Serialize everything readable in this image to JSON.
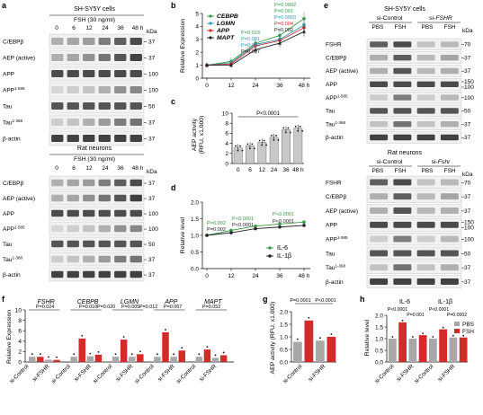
{
  "panels": {
    "a": {
      "label": "a",
      "top": {
        "cell_line": "SH-SY5Y cells",
        "treatment": "FSH (30 ng/ml)",
        "times": [
          "0",
          "6",
          "12",
          "24",
          "36",
          "48 h"
        ],
        "kda_title": "kDa",
        "rows": [
          {
            "name": "C/EBPβ",
            "kda": "37"
          },
          {
            "name": "AEP (active)",
            "kda": "37"
          },
          {
            "name": "APP",
            "kda": "100"
          },
          {
            "name": "APP",
            "sup": "1-585",
            "kda": "100"
          },
          {
            "name": "Tau",
            "kda": "50"
          },
          {
            "name": "Tau",
            "sup": "1-368",
            "kda": "37"
          },
          {
            "name": "β-actin",
            "kda": "37"
          }
        ]
      },
      "bottom": {
        "cell_line": "Rat neurons",
        "treatment": "FSH (30 ng/ml)",
        "times": [
          "0",
          "6",
          "12",
          "24",
          "36",
          "48 h"
        ],
        "kda_title": "kDa",
        "rows": [
          {
            "name": "C/EBPβ",
            "kda": "37"
          },
          {
            "name": "AEP (active)",
            "kda": "37"
          },
          {
            "name": "APP",
            "kda": "100"
          },
          {
            "name": "APP",
            "sup": "1-585",
            "kda": "100"
          },
          {
            "name": "Tau",
            "kda": "50"
          },
          {
            "name": "Tau",
            "sup": "1-368",
            "kda": "37"
          },
          {
            "name": "β-actin",
            "kda": "37"
          }
        ]
      }
    },
    "b": {
      "label": "b"
    },
    "c": {
      "label": "c",
      "pval": "P<0.0001"
    },
    "d": {
      "label": "d"
    },
    "e": {
      "label": "e",
      "top": {
        "cell_line": "SH-SY5Y cells",
        "group1": "si-Control",
        "group2_prefix": "si-",
        "group2_italic": "FSHR",
        "conds": [
          "PBS",
          "FSH",
          "PBS",
          "FSH"
        ],
        "kda_title": "kDa",
        "rows": [
          {
            "name": "FSHR",
            "kda": "70"
          },
          {
            "name": "C/EBPβ",
            "kda": "37"
          },
          {
            "name": "AEP (active)",
            "kda": "37"
          },
          {
            "name": "APP",
            "kda": "150|100"
          },
          {
            "name": "APP",
            "sup": "1-585",
            "kda": "100"
          },
          {
            "name": "Tau",
            "kda": "50"
          },
          {
            "name": "Tau",
            "sup": "1-368",
            "kda": "37"
          },
          {
            "name": "β-actin",
            "kda": "37"
          }
        ]
      },
      "bottom": {
        "cell_line": "Rat neurons",
        "group1": "si-Control",
        "group2_prefix": "si-",
        "group2_italic": "Fshr",
        "conds": [
          "PBS",
          "FSH",
          "PBS",
          "FSH"
        ],
        "kda_title": "kDa",
        "rows": [
          {
            "name": "FSHR",
            "kda": "70"
          },
          {
            "name": "C/EBPβ",
            "kda": "37"
          },
          {
            "name": "AEP (active)",
            "kda": "37"
          },
          {
            "name": "APP",
            "kda": "150|100"
          },
          {
            "name": "APP",
            "sup": "1-585",
            "kda": "100"
          },
          {
            "name": "Tau",
            "kda": "50"
          },
          {
            "name": "Tau",
            "sup": "1-368",
            "kda": "37"
          },
          {
            "name": "β-actin",
            "kda": "37"
          }
        ]
      }
    },
    "f": {
      "label": "f",
      "genes": [
        "FSHR",
        "CEBPB",
        "LGMN",
        "APP",
        "MAPT"
      ],
      "pvals": [
        "P=0.024",
        "P=0.010",
        "P=0.020",
        "P=0.005",
        "P=0.012",
        "P=0.067",
        "P=0.052"
      ],
      "xcats": [
        "si-Control",
        "si-FSHR"
      ]
    },
    "g": {
      "label": "g",
      "pvals": [
        "P=0.0001",
        "P<0.0001"
      ],
      "xcats": [
        "si-Control",
        "si-FSHR"
      ]
    },
    "h": {
      "label": "h",
      "groups": [
        "IL-6",
        "IL-1β"
      ],
      "pvals": [
        "P<0.0001",
        "P=0.001",
        "P<0.0001",
        "P=0.0002"
      ],
      "xcats": [
        "si-Control",
        "si-FSHR",
        "si-Control",
        "si-FSHR"
      ]
    }
  },
  "chart_data": [
    {
      "panel": "b",
      "type": "line",
      "ylabel": "Relative Expression",
      "x": [
        0,
        12,
        24,
        36,
        48
      ],
      "xticks": [
        "0",
        "12",
        "24",
        "36",
        "48 h"
      ],
      "ylim": [
        0,
        5
      ],
      "yticks": [
        0,
        1,
        2,
        3,
        4,
        5
      ],
      "series": [
        {
          "name": "CEBPB",
          "color": "#3a9a4a",
          "marker": "circle",
          "values": [
            1.0,
            1.3,
            2.7,
            3.3,
            4.6
          ],
          "err": [
            0.2,
            0.3,
            0.4,
            0.4,
            0.5
          ]
        },
        {
          "name": "LGMN",
          "color": "#2f9dbd",
          "marker": "square",
          "values": [
            1.0,
            1.2,
            2.6,
            3.0,
            4.1
          ],
          "err": [
            0.2,
            0.2,
            0.3,
            0.4,
            0.4
          ]
        },
        {
          "name": "APP",
          "color": "#d32a2a",
          "marker": "diamond",
          "values": [
            1.0,
            1.1,
            2.5,
            2.9,
            3.9
          ],
          "err": [
            0.2,
            0.2,
            0.3,
            0.3,
            0.5
          ]
        },
        {
          "name": "MAPT",
          "color": "#222222",
          "marker": "triangle",
          "values": [
            1.0,
            1.0,
            2.2,
            2.7,
            3.6
          ],
          "err": [
            0.1,
            0.2,
            0.3,
            0.3,
            0.4
          ]
        }
      ],
      "pvalues": [
        {
          "text": "P=0.0002",
          "color": "#3a9a4a"
        },
        {
          "text": "P=0.001",
          "color": "#3a9a4a"
        },
        {
          "text": "P=0.023",
          "color": "#3a9a4a"
        },
        {
          "text": "P=0.0003",
          "color": "#2f9dbd"
        },
        {
          "text": "P=0.001",
          "color": "#2f9dbd"
        },
        {
          "text": "P=0.020",
          "color": "#2f9dbd"
        },
        {
          "text": "P=0.004",
          "color": "#d32a2a"
        },
        {
          "text": "P=0.002",
          "color": "#222222"
        },
        {
          "text": "P=0.007",
          "color": "#222222"
        }
      ]
    },
    {
      "panel": "c",
      "type": "bar",
      "ylabel": "AEP activity\n(RFU, x1,000)",
      "categories": [
        "0",
        "6",
        "12",
        "24",
        "36",
        "48 h"
      ],
      "values": [
        3.1,
        3.5,
        4.2,
        5.2,
        6.7,
        7.0
      ],
      "ylim": [
        0,
        10
      ],
      "yticks": [
        0,
        2,
        4,
        6,
        8,
        10
      ],
      "color": "#c8c8c8"
    },
    {
      "panel": "d",
      "type": "line",
      "ylabel": "Relative level",
      "x": [
        0,
        12,
        24,
        36,
        48
      ],
      "xticks": [
        "0",
        "12",
        "24",
        "36",
        "48 h"
      ],
      "ylim": [
        0,
        2
      ],
      "yticks": [
        0.0,
        0.5,
        1.0,
        1.5,
        2.0
      ],
      "series": [
        {
          "name": "IL-6",
          "color": "#3a9a4a",
          "values": [
            1.0,
            1.15,
            1.28,
            1.34,
            1.4
          ]
        },
        {
          "name": "IL-1β",
          "color": "#222222",
          "values": [
            1.0,
            1.08,
            1.2,
            1.25,
            1.3
          ]
        }
      ],
      "pvalues": [
        {
          "text": "P<0.0001",
          "color": "#3a9a4a"
        },
        {
          "text": "P<0.0001",
          "color": "#3a9a4a"
        },
        {
          "text": "P=0.002",
          "color": "#3a9a4a"
        },
        {
          "text": "P<0.0001",
          "color": "#222222"
        },
        {
          "text": "P<0.0001",
          "color": "#222222"
        },
        {
          "text": "P=0.002",
          "color": "#222222"
        }
      ]
    },
    {
      "panel": "f",
      "type": "bar",
      "ylabel": "Relative Expression",
      "ylim": [
        0,
        10
      ],
      "yticks": [
        0,
        2,
        4,
        6,
        8,
        10
      ],
      "series": [
        {
          "name": "PBS",
          "color": "#a8a8a8"
        },
        {
          "name": "FSH",
          "color": "#d32a2a"
        }
      ],
      "groups": [
        {
          "gene": "FSHR",
          "values": [
            1.0,
            1.0,
            0.45,
            0.4
          ]
        },
        {
          "gene": "CEBPB",
          "values": [
            1.0,
            4.5,
            1.1,
            1.4
          ]
        },
        {
          "gene": "LGMN",
          "values": [
            1.0,
            4.3,
            1.0,
            1.5
          ]
        },
        {
          "gene": "APP",
          "values": [
            1.0,
            5.7,
            1.0,
            2.2
          ]
        },
        {
          "gene": "MAPT",
          "values": [
            1.0,
            2.4,
            0.8,
            1.3
          ]
        }
      ]
    },
    {
      "panel": "g",
      "type": "bar",
      "ylabel": "AEP activity (RFU, x1,000)",
      "ylim": [
        0,
        2.0
      ],
      "yticks": [
        0.0,
        0.5,
        1.0,
        1.5,
        2.0
      ],
      "values": [
        0.8,
        1.65,
        0.85,
        1.0
      ]
    },
    {
      "panel": "h",
      "type": "bar",
      "ylabel": "Relative level",
      "ylim": [
        0,
        2.0
      ],
      "yticks": [
        0.0,
        0.5,
        1.0,
        1.5,
        2.0
      ],
      "legend": [
        "PBS",
        "FSH"
      ],
      "values": [
        1.0,
        1.7,
        1.0,
        1.15,
        1.0,
        1.4,
        1.05,
        1.05
      ]
    }
  ]
}
